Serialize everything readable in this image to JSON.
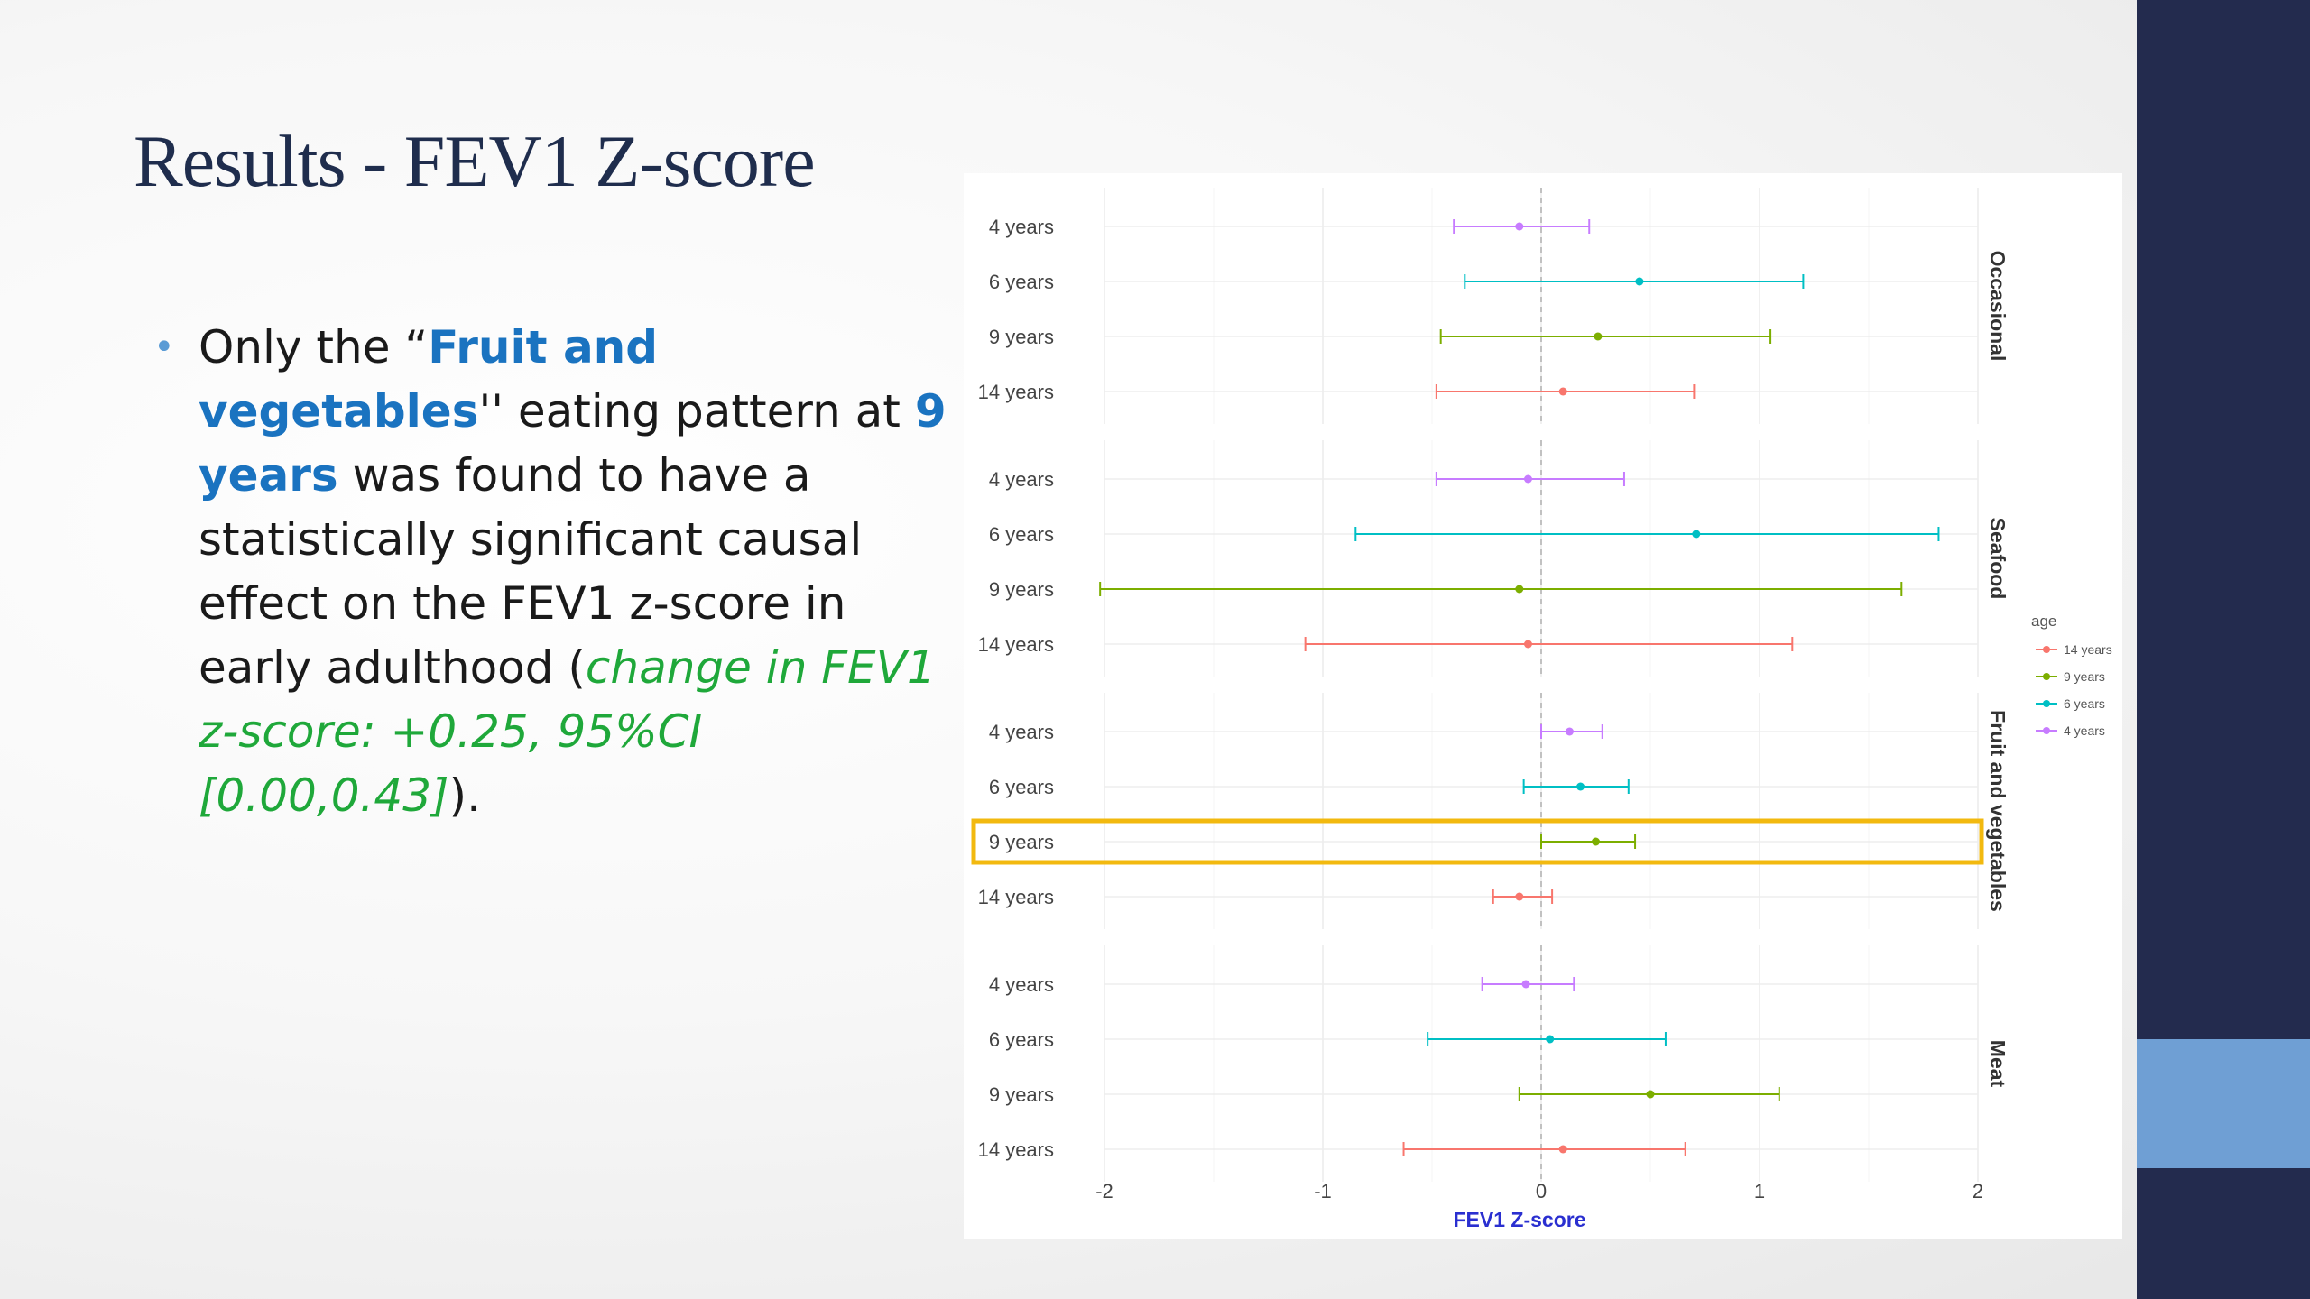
{
  "slide": {
    "title": "Results - FEV1 Z-score",
    "bullet": {
      "t1": "Only the “",
      "t2": "Fruit and vegetables",
      "t3": "'' eating pattern at ",
      "t4": "9 years",
      "t5": " was found to have a statistically significant causal effect on the FEV1 z-score in early adulthood (",
      "t6": "change in FEV1 z-score: +0.25, 95%CI [0.00,0.43]",
      "t7": ")."
    }
  },
  "chart_data": {
    "type": "forest",
    "xlabel": "FEV1 Z-score",
    "xlim": [
      -2,
      2
    ],
    "xticks": [
      -2,
      -1,
      0,
      1,
      2
    ],
    "reference_line": 0,
    "grid": true,
    "legend": {
      "title": "age",
      "position": "right",
      "entries": [
        {
          "label": "14 years",
          "color": "#f8766d"
        },
        {
          "label": "9 years",
          "color": "#7cae00"
        },
        {
          "label": "6 years",
          "color": "#00bfc4"
        },
        {
          "label": "4 years",
          "color": "#c77cff"
        }
      ]
    },
    "row_labels": [
      "4 years",
      "6 years",
      "9 years",
      "14 years"
    ],
    "highlight": {
      "panel": "Fruit and vegetables",
      "row": "9 years",
      "color": "#f2b90f"
    },
    "panels": [
      {
        "name": "Occasional",
        "rows": [
          {
            "age": "4 years",
            "est": -0.1,
            "lo": -0.4,
            "hi": 0.22
          },
          {
            "age": "6 years",
            "est": 0.45,
            "lo": -0.35,
            "hi": 1.2
          },
          {
            "age": "9 years",
            "est": 0.26,
            "lo": -0.46,
            "hi": 1.05
          },
          {
            "age": "14 years",
            "est": 0.1,
            "lo": -0.48,
            "hi": 0.7
          }
        ]
      },
      {
        "name": "Seafood",
        "rows": [
          {
            "age": "4 years",
            "est": -0.06,
            "lo": -0.48,
            "hi": 0.38
          },
          {
            "age": "6 years",
            "est": 0.71,
            "lo": -0.85,
            "hi": 1.82
          },
          {
            "age": "9 years",
            "est": -0.1,
            "lo": -2.02,
            "hi": 1.65
          },
          {
            "age": "14 years",
            "est": -0.06,
            "lo": -1.08,
            "hi": 1.15
          }
        ]
      },
      {
        "name": "Fruit and vegetables",
        "rows": [
          {
            "age": "4 years",
            "est": 0.13,
            "lo": 0.0,
            "hi": 0.28
          },
          {
            "age": "6 years",
            "est": 0.18,
            "lo": -0.08,
            "hi": 0.4
          },
          {
            "age": "9 years",
            "est": 0.25,
            "lo": 0.0,
            "hi": 0.43
          },
          {
            "age": "14 years",
            "est": -0.1,
            "lo": -0.22,
            "hi": 0.05
          }
        ]
      },
      {
        "name": "Meat",
        "rows": [
          {
            "age": "4 years",
            "est": -0.07,
            "lo": -0.27,
            "hi": 0.15
          },
          {
            "age": "6 years",
            "est": 0.04,
            "lo": -0.52,
            "hi": 0.57
          },
          {
            "age": "9 years",
            "est": 0.5,
            "lo": -0.1,
            "hi": 1.09
          },
          {
            "age": "14 years",
            "est": 0.1,
            "lo": -0.63,
            "hi": 0.66
          }
        ]
      }
    ]
  }
}
